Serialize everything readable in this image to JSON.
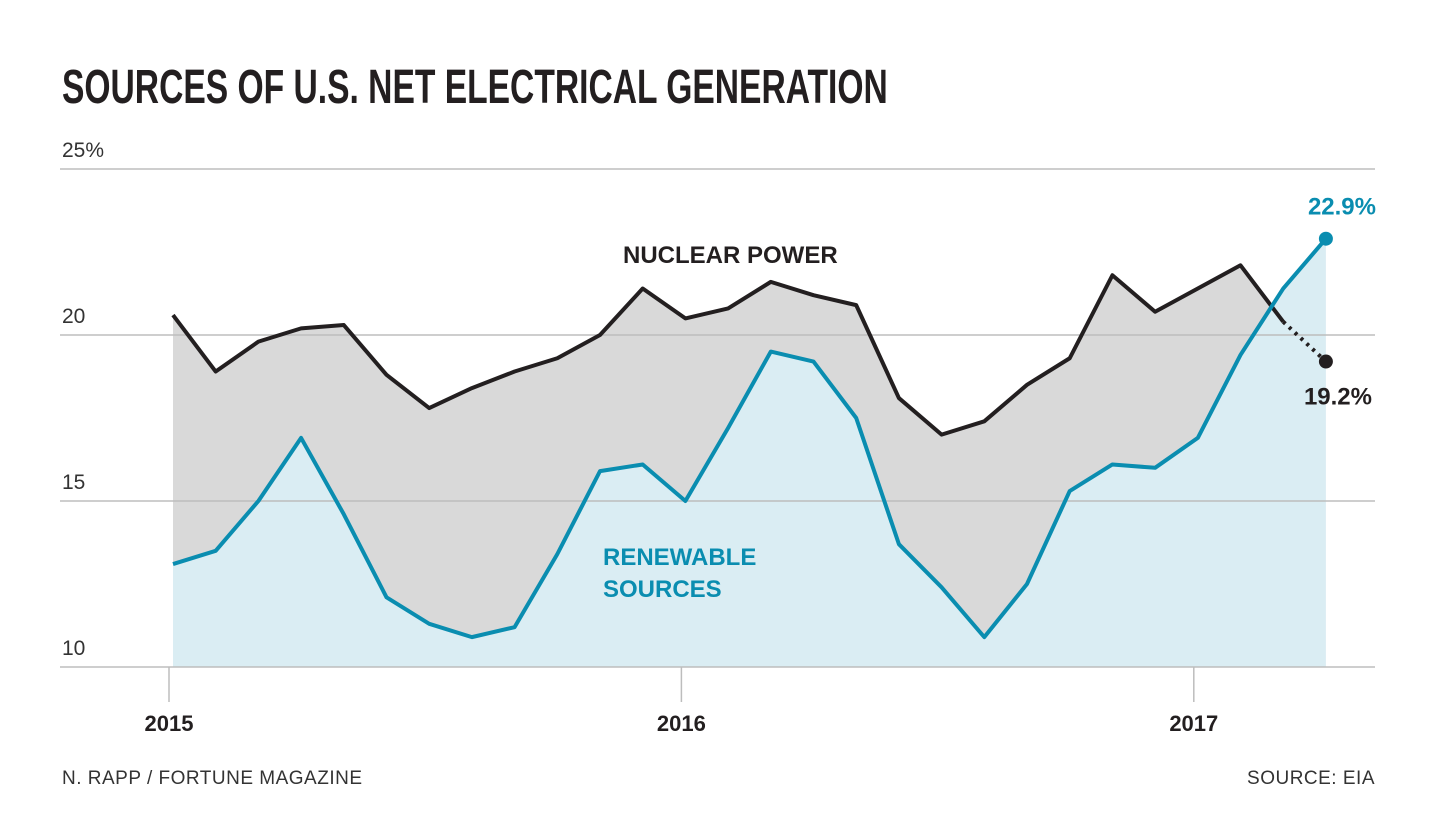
{
  "chart_data": {
    "type": "area",
    "title": "SOURCES OF U.S. NET ELECTRICAL GENERATION",
    "ylabel": "",
    "xlabel": "",
    "ylim": [
      10,
      25
    ],
    "yticks": [
      {
        "value": 25,
        "label": "25%"
      },
      {
        "value": 20,
        "label": "20"
      },
      {
        "value": 15,
        "label": "15"
      },
      {
        "value": 10,
        "label": "10"
      }
    ],
    "xticks": [
      {
        "month_index": 0,
        "label": "2015"
      },
      {
        "month_index": 12,
        "label": "2016"
      },
      {
        "month_index": 24,
        "label": "2017"
      }
    ],
    "x": [
      "2015-01",
      "2015-02",
      "2015-03",
      "2015-04",
      "2015-05",
      "2015-06",
      "2015-07",
      "2015-08",
      "2015-09",
      "2015-10",
      "2015-11",
      "2015-12",
      "2016-01",
      "2016-02",
      "2016-03",
      "2016-04",
      "2016-05",
      "2016-06",
      "2016-07",
      "2016-08",
      "2016-09",
      "2016-10",
      "2016-11",
      "2016-12",
      "2017-01",
      "2017-02",
      "2017-03",
      "2017-04"
    ],
    "grid": true,
    "series": [
      {
        "name": "NUCLEAR POWER",
        "color": "#231f20",
        "fill": "#d9d9d9",
        "values": [
          20.6,
          18.9,
          19.8,
          20.2,
          20.3,
          18.8,
          17.8,
          18.4,
          18.9,
          19.3,
          20.0,
          21.4,
          20.5,
          20.8,
          21.6,
          21.2,
          20.9,
          18.1,
          17.0,
          17.4,
          18.5,
          19.3,
          21.8,
          20.7,
          21.4,
          22.1,
          20.4,
          19.2
        ],
        "end_label": "19.2%"
      },
      {
        "name": "RENEWABLE\nSOURCES",
        "color": "#0a8db0",
        "fill": "#daedf3",
        "values": [
          13.1,
          13.5,
          15.0,
          16.9,
          14.6,
          12.1,
          11.3,
          10.9,
          11.2,
          13.4,
          15.9,
          16.1,
          15.0,
          17.2,
          19.5,
          19.2,
          17.5,
          13.7,
          12.4,
          10.9,
          12.5,
          15.3,
          16.1,
          16.0,
          16.9,
          19.4,
          21.4,
          22.9
        ],
        "end_label": "22.9%"
      }
    ]
  },
  "footer": {
    "credit": "N. RAPP / FORTUNE MAGAZINE",
    "source": "SOURCE: EIA"
  }
}
